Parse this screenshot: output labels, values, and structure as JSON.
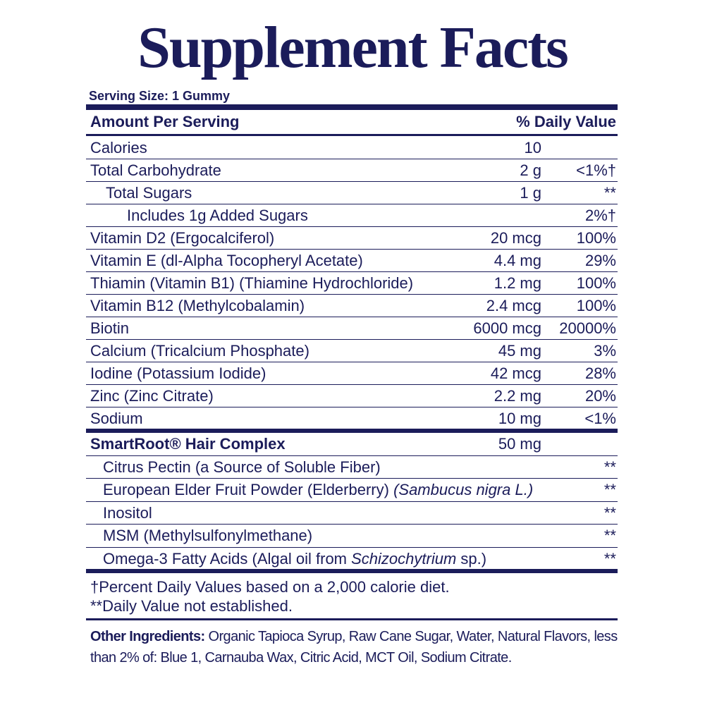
{
  "title": "Supplement Facts",
  "serving_size": "Serving Size: 1 Gummy",
  "table": {
    "header": [
      "Amount Per Serving",
      "% Daily Value"
    ],
    "rows": [
      {
        "name": "Calories",
        "amount": "10"
      },
      {
        "name": "Total Carbohydrate",
        "amount": "2 g",
        "dv": "<1%†"
      },
      {
        "name": "Total Sugars",
        "amount": "1 g",
        "dv": "**"
      },
      {
        "name": "Includes 1g Added Sugars",
        "dv": "2%†"
      },
      {
        "name": "Vitamin D2 (Ergocalciferol)",
        "amount": "20 mcg",
        "dv": "100%"
      },
      {
        "name": "Vitamin E (dl-Alpha Tocopheryl Acetate)",
        "amount": "4.4 mg",
        "dv": "29%"
      },
      {
        "name": "Thiamin (Vitamin B1) (Thiamine Hydrochloride)",
        "amount": "1.2 mg",
        "dv": "100%"
      },
      {
        "name": "Vitamin B12 (Methylcobalamin)",
        "amount": "2.4 mcg",
        "dv": "100%"
      },
      {
        "name": "Biotin",
        "amount": "6000 mcg",
        "dv": "20000%"
      },
      {
        "name": "Calcium (Tricalcium Phosphate)",
        "amount": "45 mg",
        "dv": "3%"
      },
      {
        "name": "Iodine (Potassium Iodide)",
        "amount": "42 mcg",
        "dv": "28%"
      },
      {
        "name": "Zinc (Zinc Citrate)",
        "amount": "2.2 mg",
        "dv": "20%"
      },
      {
        "name": "Sodium",
        "amount": "10 mg",
        "dv": "<1%"
      }
    ],
    "complex": {
      "name": "SmartRoot® Hair Complex",
      "amount": "50 mg",
      "items": [
        {
          "name": [
            "Citrus Pectin (a Source of Soluble Fiber)"
          ],
          "dv": "**"
        },
        {
          "name": [
            "European Elder Fruit Powder (Elderberry) ",
            "(Sambucus nigra L.)"
          ],
          "dv": "**"
        },
        {
          "name": [
            "Inositol"
          ],
          "dv": "**"
        },
        {
          "name": [
            "MSM (Methylsulfonylmethane)"
          ],
          "dv": "**"
        },
        {
          "name": [
            "Omega-3 Fatty Acids (Algal oil from ",
            "Schizochytrium",
            " sp.)"
          ],
          "dv": "**"
        }
      ]
    }
  },
  "footnotes": [
    "†Percent Daily Values based on a 2,000 calorie diet.",
    "**Daily Value not established."
  ],
  "other_ingredients": {
    "label": "Other Ingredients:",
    "text": "Organic Tapioca Syrup, Raw Cane Sugar, Water, Natural Flavors, less than 2% of: Blue 1, Carnauba Wax, Citric Acid, MCT Oil, Sodium Citrate."
  }
}
